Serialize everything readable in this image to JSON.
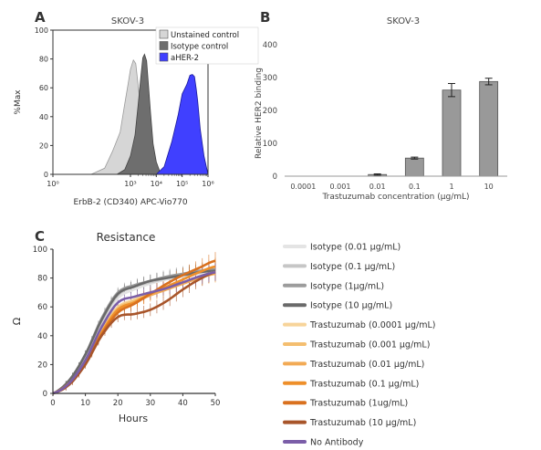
{
  "panel_letters": [
    "A",
    "B",
    "C"
  ],
  "chart_data": [
    {
      "panel": "A",
      "type": "area",
      "title": "SKOV-3",
      "xlabel": "ErbB-2 (CD340) APC-Vio770",
      "ylabel": "%Max",
      "x_scale": "log",
      "xlim": [
        1,
        1000000
      ],
      "ylim": [
        0,
        100
      ],
      "x_tick_labels": [
        "10⁰",
        "10³",
        "10⁴",
        "10⁵",
        "10⁶"
      ],
      "y_ticks": [
        0,
        20,
        40,
        60,
        80,
        100
      ],
      "legend_position": "top-right",
      "series": [
        {
          "name": "Unstained control",
          "color": "#d6d6d6",
          "stroke": "#9a9a9a",
          "x": [
            30,
            100,
            200,
            400,
            600,
            800,
            1000,
            1300,
            1600,
            2000,
            2600,
            3500,
            5000,
            7000
          ],
          "y": [
            0,
            5,
            15,
            30,
            48,
            63,
            72,
            80,
            76,
            62,
            42,
            20,
            8,
            0
          ]
        },
        {
          "name": "Isotype control",
          "color": "#6e6e6e",
          "stroke": "#444444",
          "x": [
            300,
            600,
            1000,
            1500,
            2000,
            2500,
            3000,
            3500,
            4200,
            5000,
            6000,
            7500,
            10000,
            15000
          ],
          "y": [
            0,
            4,
            12,
            28,
            48,
            68,
            80,
            84,
            78,
            62,
            42,
            22,
            8,
            0
          ]
        },
        {
          "name": "aHER-2",
          "color": "#4040ff",
          "stroke": "#1a1a99",
          "x": [
            10000,
            20000,
            40000,
            70000,
            100000,
            150000,
            200000,
            250000,
            300000,
            350000,
            400000,
            500000,
            700000,
            1000000
          ],
          "y": [
            0,
            6,
            22,
            42,
            55,
            63,
            68,
            70,
            67,
            60,
            50,
            32,
            12,
            0
          ]
        }
      ]
    },
    {
      "panel": "B",
      "type": "bar",
      "title": "SKOV-3",
      "xlabel": "Trastuzumab concentration (µg/mL)",
      "ylabel": "Relative HER2 binding",
      "categories": [
        "0.0001",
        "0.001",
        "0.01",
        "0.1",
        "1",
        "10"
      ],
      "values": [
        0,
        0,
        5,
        55,
        262,
        288
      ],
      "errors": [
        0,
        0,
        2,
        3,
        20,
        10
      ],
      "ylim": [
        0,
        400
      ],
      "y_ticks": [
        0,
        100,
        200,
        300,
        400
      ],
      "bar_color": "#999999"
    },
    {
      "panel": "C",
      "type": "line",
      "title": "Resistance",
      "xlabel": "Hours",
      "ylabel": "Ω",
      "xlim": [
        0,
        50
      ],
      "ylim": [
        0,
        100
      ],
      "x_ticks": [
        0,
        10,
        20,
        30,
        40,
        50
      ],
      "y_ticks": [
        0,
        20,
        40,
        60,
        80,
        100
      ],
      "x": [
        0,
        5,
        10,
        15,
        20,
        25,
        30,
        35,
        40,
        45,
        50
      ],
      "series": [
        {
          "name": "Isotype (0.01 µg/mL)",
          "color": "#e4e4e4",
          "values": [
            0,
            8,
            25,
            48,
            66,
            72,
            76,
            79,
            81,
            83,
            85
          ]
        },
        {
          "name": "Isotype (0.1 µg/mL)",
          "color": "#c6c6c6",
          "values": [
            0,
            8,
            26,
            50,
            68,
            74,
            77,
            80,
            82,
            84,
            86
          ]
        },
        {
          "name": "Isotype (1µg/mL)",
          "color": "#9c9c9c",
          "values": [
            0,
            9,
            27,
            52,
            70,
            75,
            78,
            81,
            83,
            85,
            86
          ]
        },
        {
          "name": "Isotype (10 µg/mL)",
          "color": "#6a6a6a",
          "values": [
            0,
            9,
            27,
            51,
            69,
            74,
            78,
            80,
            82,
            84,
            85
          ]
        },
        {
          "name": "Trastuzumab (0.0001 µg/mL)",
          "color": "#f7d49a",
          "values": [
            0,
            7,
            22,
            44,
            60,
            65,
            70,
            73,
            77,
            81,
            84
          ]
        },
        {
          "name": "Trastuzumab (0.001 µg/mL)",
          "color": "#f4be70",
          "values": [
            0,
            7,
            22,
            43,
            59,
            64,
            69,
            73,
            77,
            80,
            83
          ]
        },
        {
          "name": "Trastuzumab (0.01 µg/mL)",
          "color": "#f2aa55",
          "values": [
            0,
            7,
            21,
            42,
            58,
            63,
            68,
            72,
            76,
            80,
            83
          ]
        },
        {
          "name": "Trastuzumab (0.1 µg/mL)",
          "color": "#ee8f2a",
          "values": [
            0,
            7,
            21,
            42,
            58,
            63,
            69,
            74,
            79,
            84,
            88
          ]
        },
        {
          "name": "Trastuzumab (1ug/mL)",
          "color": "#d9711f",
          "values": [
            0,
            7,
            21,
            41,
            56,
            62,
            69,
            76,
            82,
            87,
            92
          ]
        },
        {
          "name": "Trastuzumab (10 µg/mL)",
          "color": "#a8552a",
          "values": [
            0,
            6,
            20,
            40,
            53,
            55,
            58,
            64,
            72,
            79,
            84
          ]
        },
        {
          "name": "No Antibody",
          "color": "#7b5ea8",
          "values": [
            0,
            7,
            23,
            46,
            63,
            67,
            70,
            73,
            77,
            81,
            84
          ]
        }
      ]
    }
  ]
}
